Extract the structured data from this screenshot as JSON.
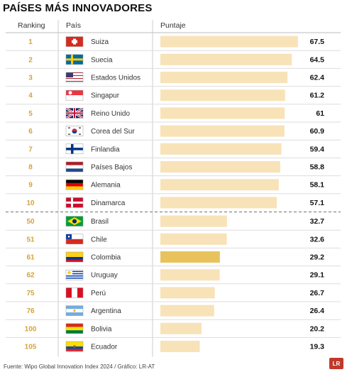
{
  "title": "PAÍSES MÁS INNOVADORES",
  "header": {
    "ranking": "Ranking",
    "country": "País",
    "score": "Puntaje"
  },
  "source": "Fuente: Wipo Global Innovation Index 2024 / Gráfico: LR-AT",
  "logo_text": "LR",
  "colors": {
    "bar": "#f8e2b8",
    "bar_highlight": "#e8c35d",
    "rank": "#d4a33b",
    "divider": "#888888",
    "row_line": "#dddddd"
  },
  "chart_data": {
    "type": "bar",
    "orientation": "horizontal",
    "title": "PAÍSES MÁS INNOVADORES",
    "xlabel": "Puntaje",
    "xlim": [
      0,
      70
    ],
    "highlight": "Colombia",
    "rows": [
      {
        "rank": "1",
        "country": "Suiza",
        "value": 67.5,
        "label": "67.5",
        "flag": "switzerland-flag"
      },
      {
        "rank": "2",
        "country": "Suecia",
        "value": 64.5,
        "label": "64.5",
        "flag": "sweden-flag"
      },
      {
        "rank": "3",
        "country": "Estados Unidos",
        "value": 62.4,
        "label": "62.4",
        "flag": "usa-flag"
      },
      {
        "rank": "4",
        "country": "Singapur",
        "value": 61.2,
        "label": "61.2",
        "flag": "singapore-flag"
      },
      {
        "rank": "5",
        "country": "Reino Unido",
        "value": 61,
        "label": "61",
        "flag": "uk-flag"
      },
      {
        "rank": "6",
        "country": "Corea del Sur",
        "value": 60.9,
        "label": "60.9",
        "flag": "south-korea-flag"
      },
      {
        "rank": "7",
        "country": "Finlandia",
        "value": 59.4,
        "label": "59.4",
        "flag": "finland-flag"
      },
      {
        "rank": "8",
        "country": "Países Bajos",
        "value": 58.8,
        "label": "58.8",
        "flag": "netherlands-flag"
      },
      {
        "rank": "9",
        "country": "Alemania",
        "value": 58.1,
        "label": "58.1",
        "flag": "germany-flag"
      },
      {
        "rank": "10",
        "country": "Dinamarca",
        "value": 57.1,
        "label": "57.1",
        "flag": "denmark-flag"
      },
      {
        "rank": "50",
        "country": "Brasil",
        "value": 32.7,
        "label": "32.7",
        "flag": "brazil-flag"
      },
      {
        "rank": "51",
        "country": "Chile",
        "value": 32.6,
        "label": "32.6",
        "flag": "chile-flag"
      },
      {
        "rank": "61",
        "country": "Colombia",
        "value": 29.2,
        "label": "29.2",
        "flag": "colombia-flag"
      },
      {
        "rank": "62",
        "country": "Uruguay",
        "value": 29.1,
        "label": "29.1",
        "flag": "uruguay-flag"
      },
      {
        "rank": "75",
        "country": "Perú",
        "value": 26.7,
        "label": "26.7",
        "flag": "peru-flag"
      },
      {
        "rank": "76",
        "country": "Argentina",
        "value": 26.4,
        "label": "26.4",
        "flag": "argentina-flag"
      },
      {
        "rank": "100",
        "country": "Bolivia",
        "value": 20.2,
        "label": "20.2",
        "flag": "bolivia-flag"
      },
      {
        "rank": "105",
        "country": "Ecuador",
        "value": 19.3,
        "label": "19.3",
        "flag": "ecuador-flag"
      }
    ]
  }
}
